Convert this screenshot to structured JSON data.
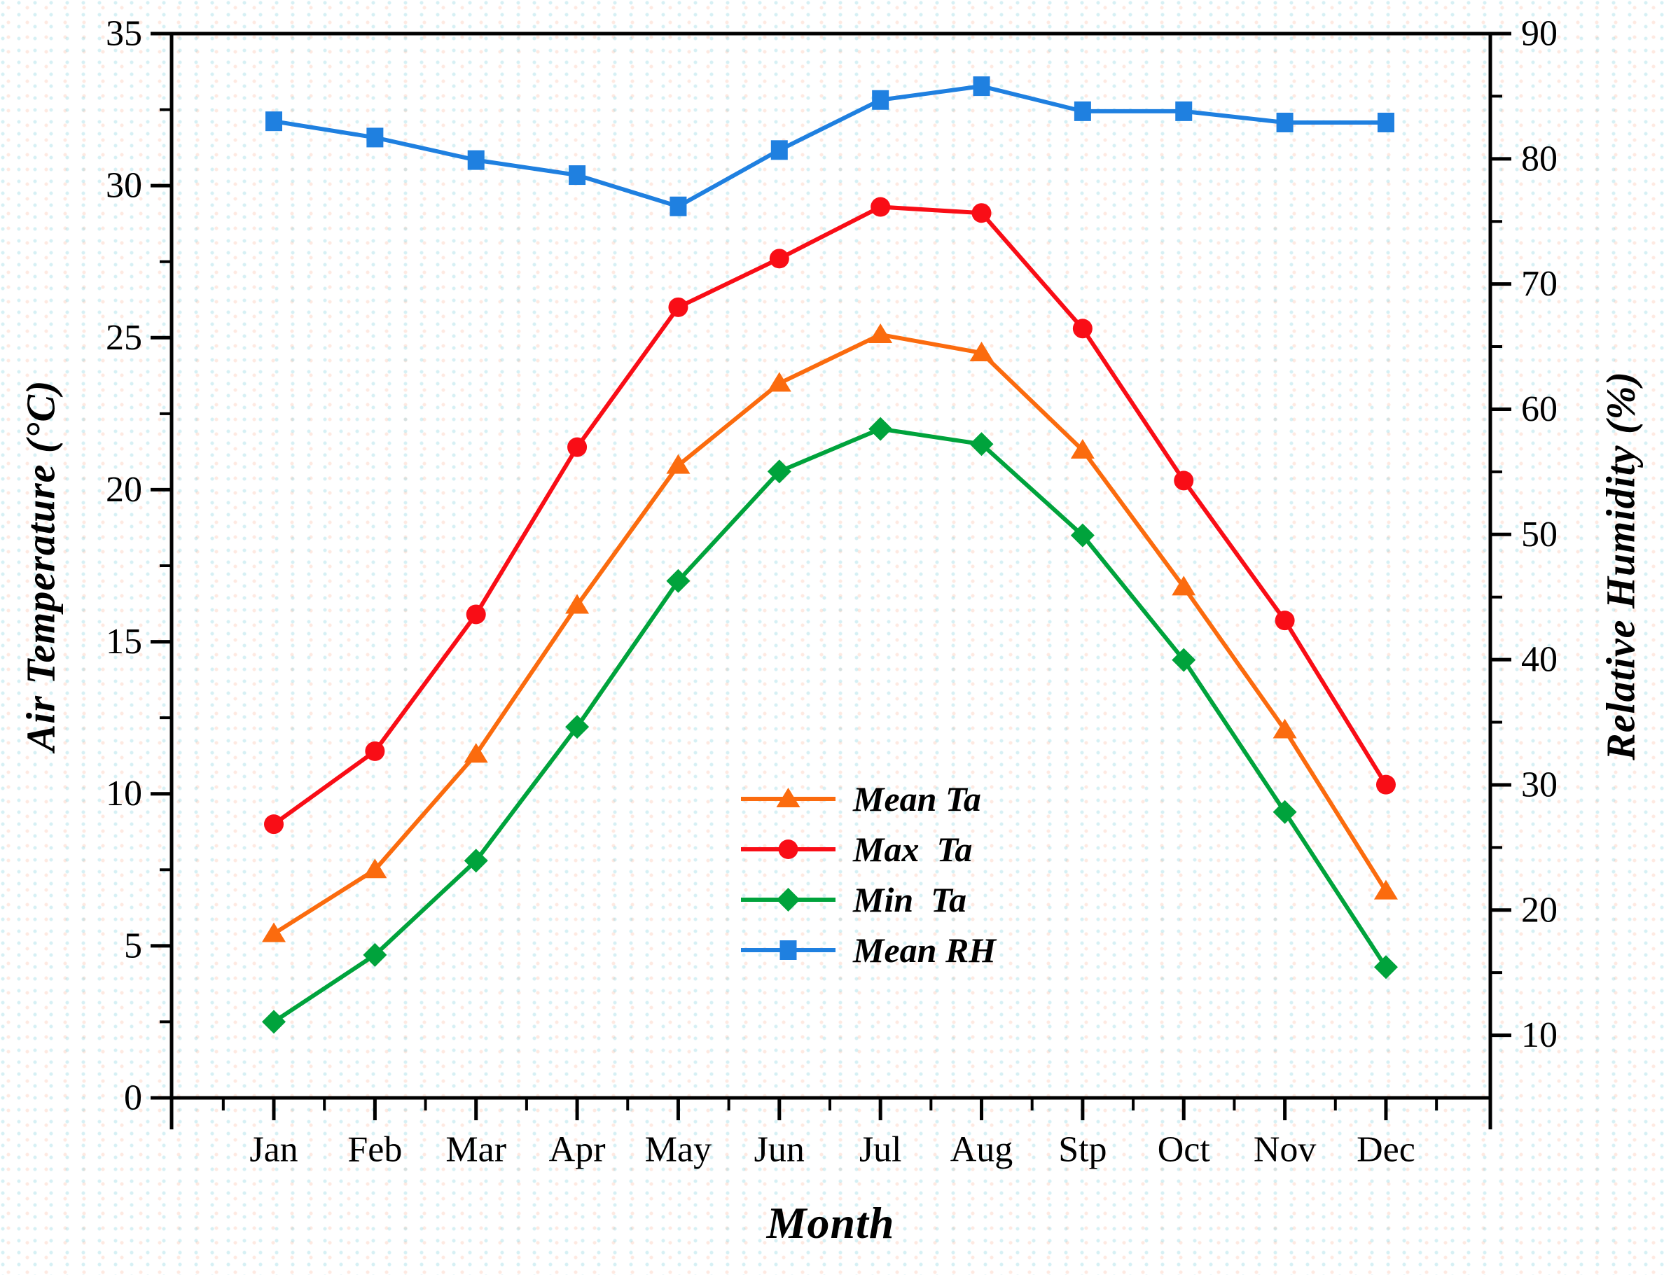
{
  "figure": {
    "x_axis_title": "Month",
    "left_axis_title": "Air Temperature (°C)",
    "right_axis_title": "Relative Humidity (%)"
  },
  "chart_data": {
    "type": "line",
    "title": "",
    "xlabel": "Month",
    "ylabel_left": "Air Temperature (°C)",
    "ylabel_right": "Relative Humidity (%)",
    "categories": [
      "Jan",
      "Feb",
      "Mar",
      "Apr",
      "May",
      "Jun",
      "Jul",
      "Aug",
      "Stp",
      "Oct",
      "Nov",
      "Dec"
    ],
    "ylim_left": [
      0,
      35
    ],
    "ylim_right": [
      5,
      90
    ],
    "y_left_major_ticks": [
      0,
      5,
      10,
      15,
      20,
      25,
      30,
      35
    ],
    "y_left_minor_ticks": [
      2.5,
      7.5,
      12.5,
      17.5,
      22.5,
      27.5,
      32.5
    ],
    "y_right_major_ticks": [
      10,
      20,
      30,
      40,
      50,
      60,
      70,
      80,
      90
    ],
    "y_right_minor_ticks": [
      15,
      25,
      35,
      45,
      55,
      65,
      75,
      85
    ],
    "grid": false,
    "legend_position": "inside lower-center-right",
    "axis_color": "#000000",
    "series": [
      {
        "name": "Mean Ta",
        "axis": "left",
        "marker": "triangle",
        "color": "#fb6b0e",
        "values": [
          5.4,
          7.5,
          11.3,
          16.2,
          20.8,
          23.5,
          25.1,
          24.5,
          21.3,
          16.8,
          12.1,
          6.8
        ]
      },
      {
        "name": "Max  Ta",
        "axis": "left",
        "marker": "circle",
        "color": "#f90d16",
        "values": [
          9.0,
          11.4,
          15.9,
          21.4,
          26.0,
          27.6,
          29.3,
          29.1,
          25.3,
          20.3,
          15.7,
          10.3
        ]
      },
      {
        "name": "Min  Ta",
        "axis": "left",
        "marker": "diamond",
        "color": "#00a33c",
        "values": [
          2.5,
          4.7,
          7.8,
          12.2,
          17.0,
          20.6,
          22.0,
          21.5,
          18.5,
          14.4,
          9.4,
          4.3
        ]
      },
      {
        "name": "Mean RH",
        "axis": "right",
        "marker": "square",
        "color": "#1f80e0",
        "values": [
          83.0,
          81.7,
          79.9,
          78.7,
          76.2,
          80.7,
          84.7,
          85.8,
          83.8,
          83.8,
          82.9,
          82.9
        ]
      }
    ]
  }
}
